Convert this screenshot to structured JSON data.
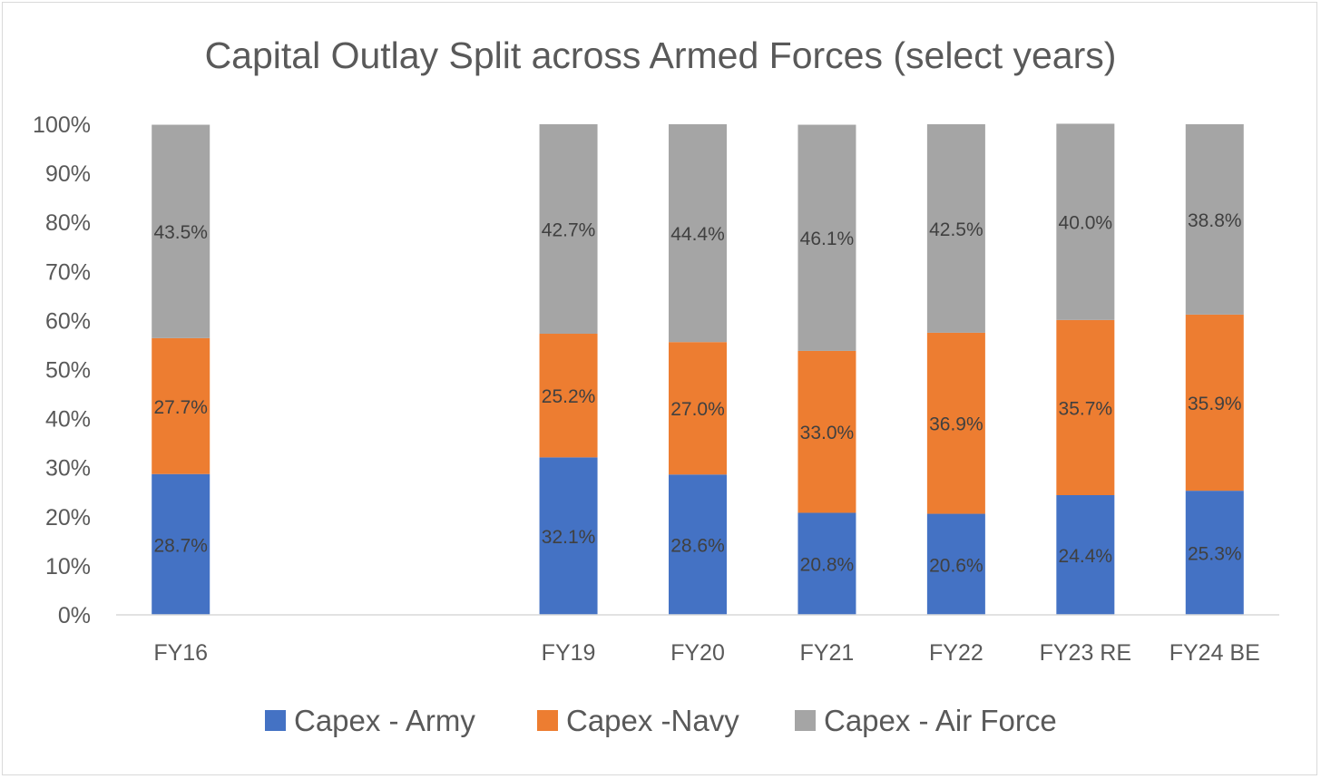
{
  "chart_data": {
    "type": "bar",
    "stacked": true,
    "title": "Capital Outlay Split across Armed Forces (select years)",
    "categories": [
      "FY16",
      "",
      "",
      "FY19",
      "FY20",
      "FY21",
      "FY22",
      "FY23 RE",
      "FY24 BE"
    ],
    "series": [
      {
        "name": "Capex - Army",
        "color": "#4472c4",
        "values": [
          28.7,
          null,
          null,
          32.1,
          28.6,
          20.8,
          20.6,
          24.4,
          25.3
        ],
        "labels": [
          "28.7%",
          "",
          "",
          "32.1%",
          "28.6%",
          "20.8%",
          "20.6%",
          "24.4%",
          "25.3%"
        ]
      },
      {
        "name": "Capex -Navy",
        "color": "#ed7d31",
        "values": [
          27.7,
          null,
          null,
          25.2,
          27.0,
          33.0,
          36.9,
          35.7,
          35.9
        ],
        "labels": [
          "27.7%",
          "",
          "",
          "25.2%",
          "27.0%",
          "33.0%",
          "36.9%",
          "35.7%",
          "35.9%"
        ]
      },
      {
        "name": "Capex - Air Force",
        "color": "#a5a5a5",
        "values": [
          43.5,
          null,
          null,
          42.7,
          44.4,
          46.1,
          42.5,
          40.0,
          38.8
        ],
        "labels": [
          "43.5%",
          "",
          "",
          "42.7%",
          "44.4%",
          "46.1%",
          "42.5%",
          "40.0%",
          "38.8%"
        ]
      }
    ],
    "ylim": [
      0,
      100
    ],
    "yticks": [
      "0%",
      "10%",
      "20%",
      "30%",
      "40%",
      "50%",
      "60%",
      "70%",
      "80%",
      "90%",
      "100%"
    ],
    "grid": false,
    "legend": "bottom"
  }
}
